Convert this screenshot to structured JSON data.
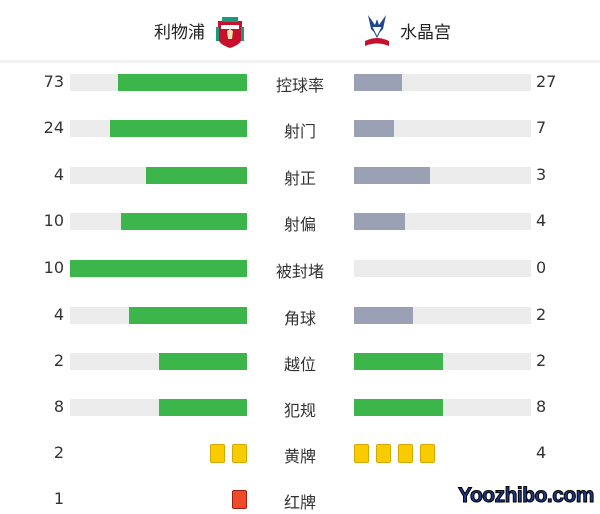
{
  "home": {
    "name": "利物浦",
    "crest": "liverpool-crest"
  },
  "away": {
    "name": "水晶宫",
    "crest": "crystal-palace-crest"
  },
  "colors": {
    "leader": "#3cb54a",
    "trailer": "#9aa1b5",
    "track": "#ececec",
    "yellow": "#f9cc00",
    "red": "#f04a2b"
  },
  "stats": [
    {
      "label": "控球率",
      "home": "73",
      "away": "27"
    },
    {
      "label": "射门",
      "home": "24",
      "away": "7"
    },
    {
      "label": "射正",
      "home": "4",
      "away": "3"
    },
    {
      "label": "射偏",
      "home": "10",
      "away": "4"
    },
    {
      "label": "被封堵",
      "home": "10",
      "away": "0"
    },
    {
      "label": "角球",
      "home": "4",
      "away": "2"
    },
    {
      "label": "越位",
      "home": "2",
      "away": "2"
    },
    {
      "label": "犯规",
      "home": "8",
      "away": "8"
    }
  ],
  "cards": [
    {
      "label": "黄牌",
      "home": "2",
      "away": "4",
      "type": "yellow"
    },
    {
      "label": "红牌",
      "home": "1",
      "away": "",
      "type": "red"
    }
  ],
  "watermark": "Yoozhibo.com"
}
